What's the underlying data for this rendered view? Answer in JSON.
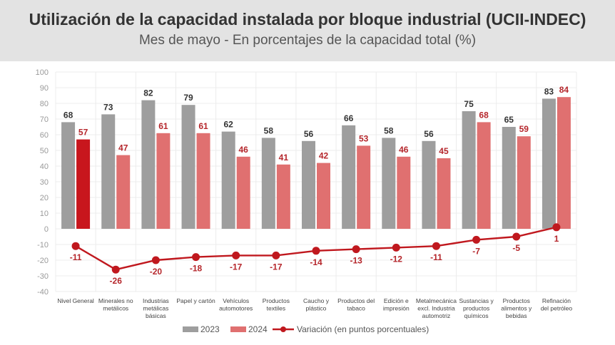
{
  "title": "Utilización de la capacidad instalada por bloque industrial (UCII-INDEC)",
  "subtitle": "Mes de mayo - En porcentajes de la capacidad total (%)",
  "colors": {
    "bar_2023": "#9e9e9e",
    "bar_2024": "#e07070",
    "bar_2024_highlight": "#c8161d",
    "line": "#c0181e",
    "label_2023": "#333333",
    "label_2024": "#b5262b"
  },
  "chart_data": {
    "type": "bar",
    "title": "Utilización de la capacidad instalada por bloque industrial (UCII-INDEC)",
    "subtitle": "Mes de mayo - En porcentajes de la capacidad total (%)",
    "ylim": [
      -40,
      100
    ],
    "yticks": [
      100,
      90,
      80,
      70,
      60,
      50,
      40,
      30,
      20,
      10,
      0,
      -10,
      -20,
      -30,
      -40
    ],
    "grid": true,
    "legend_position": "bottom",
    "categories": [
      [
        "Nivel General"
      ],
      [
        "Minerales no",
        "metálicos"
      ],
      [
        "Industrias",
        "metálicas",
        "básicas"
      ],
      [
        "Papel y cartón"
      ],
      [
        "Vehículos",
        "automotores"
      ],
      [
        "Productos",
        "textiles"
      ],
      [
        "Caucho y",
        "plástico"
      ],
      [
        "Productos del",
        "tabaco"
      ],
      [
        "Edición e",
        "impresión"
      ],
      [
        "Metalmecánica",
        "excl. Industria",
        "automotriz"
      ],
      [
        "Sustancias y",
        "productos",
        "químicos"
      ],
      [
        "Productos",
        "alimentos y",
        "bebidas"
      ],
      [
        "Refinación",
        "del petróleo"
      ]
    ],
    "series": [
      {
        "name": "2023",
        "type": "bar",
        "values": [
          68,
          73,
          82,
          79,
          62,
          58,
          56,
          66,
          58,
          56,
          75,
          65,
          83
        ]
      },
      {
        "name": "2024",
        "type": "bar",
        "values": [
          57,
          47,
          61,
          61,
          46,
          41,
          42,
          53,
          46,
          45,
          68,
          59,
          84
        ]
      },
      {
        "name": "Variación (en puntos porcentuales)",
        "type": "line",
        "values": [
          -11,
          -26,
          -20,
          -18,
          -17,
          -17,
          -14,
          -13,
          -12,
          -11,
          -7,
          -5,
          1
        ]
      }
    ]
  }
}
